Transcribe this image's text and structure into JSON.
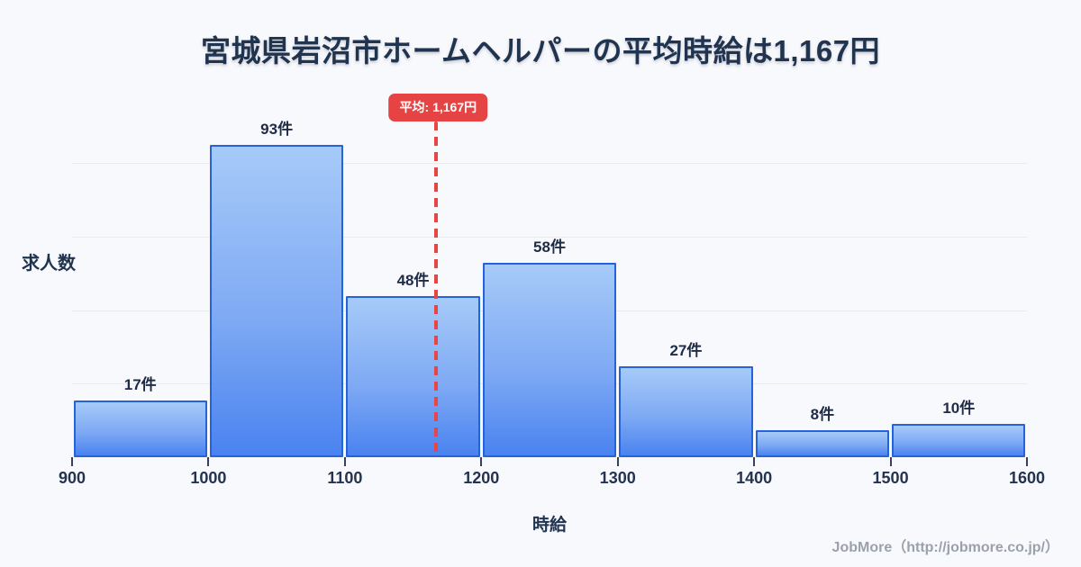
{
  "page": {
    "footer_credit": "JobMore（http://jobmore.co.jp/）"
  },
  "chart_data": {
    "type": "bar",
    "subtype": "histogram",
    "title": "宮城県岩沼市ホームヘルパーの平均時給は1,167円",
    "xlabel": "時給",
    "ylabel": "求人数",
    "x_ticks": [
      "900",
      "1000",
      "1100",
      "1200",
      "1300",
      "1400",
      "1500",
      "1600"
    ],
    "xlim": [
      900,
      1600
    ],
    "bin_width": 100,
    "bins": [
      {
        "from": 900,
        "to": 1000,
        "count": 17,
        "label": "17件"
      },
      {
        "from": 1000,
        "to": 1100,
        "count": 93,
        "label": "93件"
      },
      {
        "from": 1100,
        "to": 1200,
        "count": 48,
        "label": "48件"
      },
      {
        "from": 1200,
        "to": 1300,
        "count": 58,
        "label": "58件"
      },
      {
        "from": 1300,
        "to": 1400,
        "count": 27,
        "label": "27件"
      },
      {
        "from": 1400,
        "to": 1500,
        "count": 8,
        "label": "8件"
      },
      {
        "from": 1500,
        "to": 1600,
        "count": 10,
        "label": "10件"
      }
    ],
    "average": {
      "value": 1167,
      "badge_label": "平均: 1,167円"
    },
    "grid": true,
    "gridline_count": 4,
    "legend": false,
    "colors": {
      "background": "#f8f9fc",
      "bar_fill_top": "#a6caf8",
      "bar_fill_bottom": "#4a83f0",
      "bar_border": "#2563db",
      "average_line": "#e84545",
      "badge_bg": "#e64444",
      "badge_text": "#ffffff",
      "title_text": "#20334f",
      "axis_text": "#243350",
      "grid_line": "#e7eaf2",
      "footer_text": "#9aa1ad"
    }
  }
}
